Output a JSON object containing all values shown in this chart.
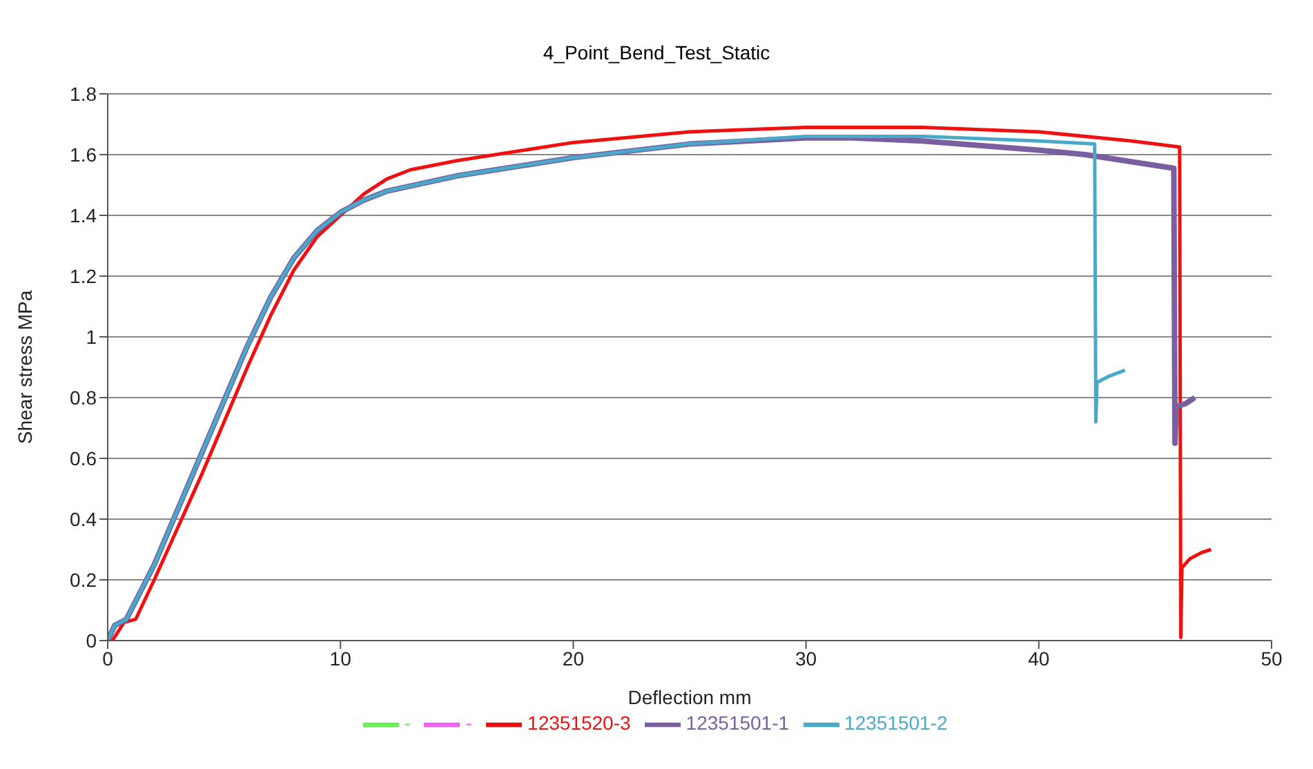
{
  "chart_data": {
    "type": "line",
    "title": "4_Point_Bend_Test_Static",
    "xlabel": "Deflection mm",
    "ylabel": "Shear stress MPa",
    "xlim": [
      0,
      50
    ],
    "xticks": [
      0,
      10,
      20,
      30,
      40,
      50
    ],
    "ylim": [
      0,
      1.8
    ],
    "yticks": [
      0,
      0.2,
      0.4,
      0.6,
      0.8,
      1,
      1.2,
      1.4,
      1.6,
      1.8
    ],
    "grid": "y",
    "legend": "bottom",
    "marker": "none",
    "line_style": "solid",
    "series": [
      {
        "name": "-",
        "color": "#66ee55"
      },
      {
        "name": "-",
        "color": "#ee66ee"
      },
      {
        "name": "12351520-3",
        "color": "#ee1111",
        "x": [
          0.2,
          0.7,
          1.2,
          2,
          3,
          4,
          5,
          6,
          7,
          8,
          9,
          10,
          11,
          12,
          13,
          15,
          20,
          25,
          30,
          35,
          40,
          44,
          46.05,
          46.1,
          46.15,
          46.5,
          47,
          47.4
        ],
        "values": [
          0,
          0.06,
          0.07,
          0.2,
          0.37,
          0.54,
          0.72,
          0.9,
          1.07,
          1.22,
          1.33,
          1.4,
          1.47,
          1.52,
          1.55,
          1.58,
          1.64,
          1.675,
          1.69,
          1.69,
          1.675,
          1.645,
          1.625,
          0.01,
          0.24,
          0.27,
          0.29,
          0.3
        ]
      },
      {
        "name": "12351501-1",
        "color": "#7a5fa0",
        "x": [
          0,
          0.3,
          0.8,
          2,
          3,
          4,
          5,
          6,
          7,
          8,
          9,
          10,
          11,
          12,
          15,
          20,
          25,
          30,
          32,
          35,
          40,
          42,
          45.8,
          45.85,
          45.9,
          46.3,
          46.7
        ],
        "values": [
          0,
          0.05,
          0.07,
          0.25,
          0.43,
          0.61,
          0.79,
          0.97,
          1.13,
          1.26,
          1.35,
          1.41,
          1.45,
          1.48,
          1.53,
          1.59,
          1.635,
          1.655,
          1.655,
          1.645,
          1.615,
          1.6,
          1.555,
          0.65,
          0.77,
          0.78,
          0.8
        ]
      },
      {
        "name": "12351501-2",
        "color": "#4aa8c8",
        "x": [
          0,
          0.3,
          0.8,
          2,
          3,
          4,
          5,
          6,
          7,
          8,
          9,
          10,
          11,
          12,
          15,
          20,
          25,
          30,
          35,
          40,
          42.4,
          42.45,
          42.5,
          43,
          43.7
        ],
        "values": [
          0,
          0.05,
          0.07,
          0.25,
          0.43,
          0.61,
          0.79,
          0.97,
          1.13,
          1.26,
          1.35,
          1.41,
          1.45,
          1.48,
          1.53,
          1.59,
          1.635,
          1.66,
          1.66,
          1.645,
          1.635,
          0.72,
          0.85,
          0.87,
          0.89
        ]
      }
    ]
  }
}
